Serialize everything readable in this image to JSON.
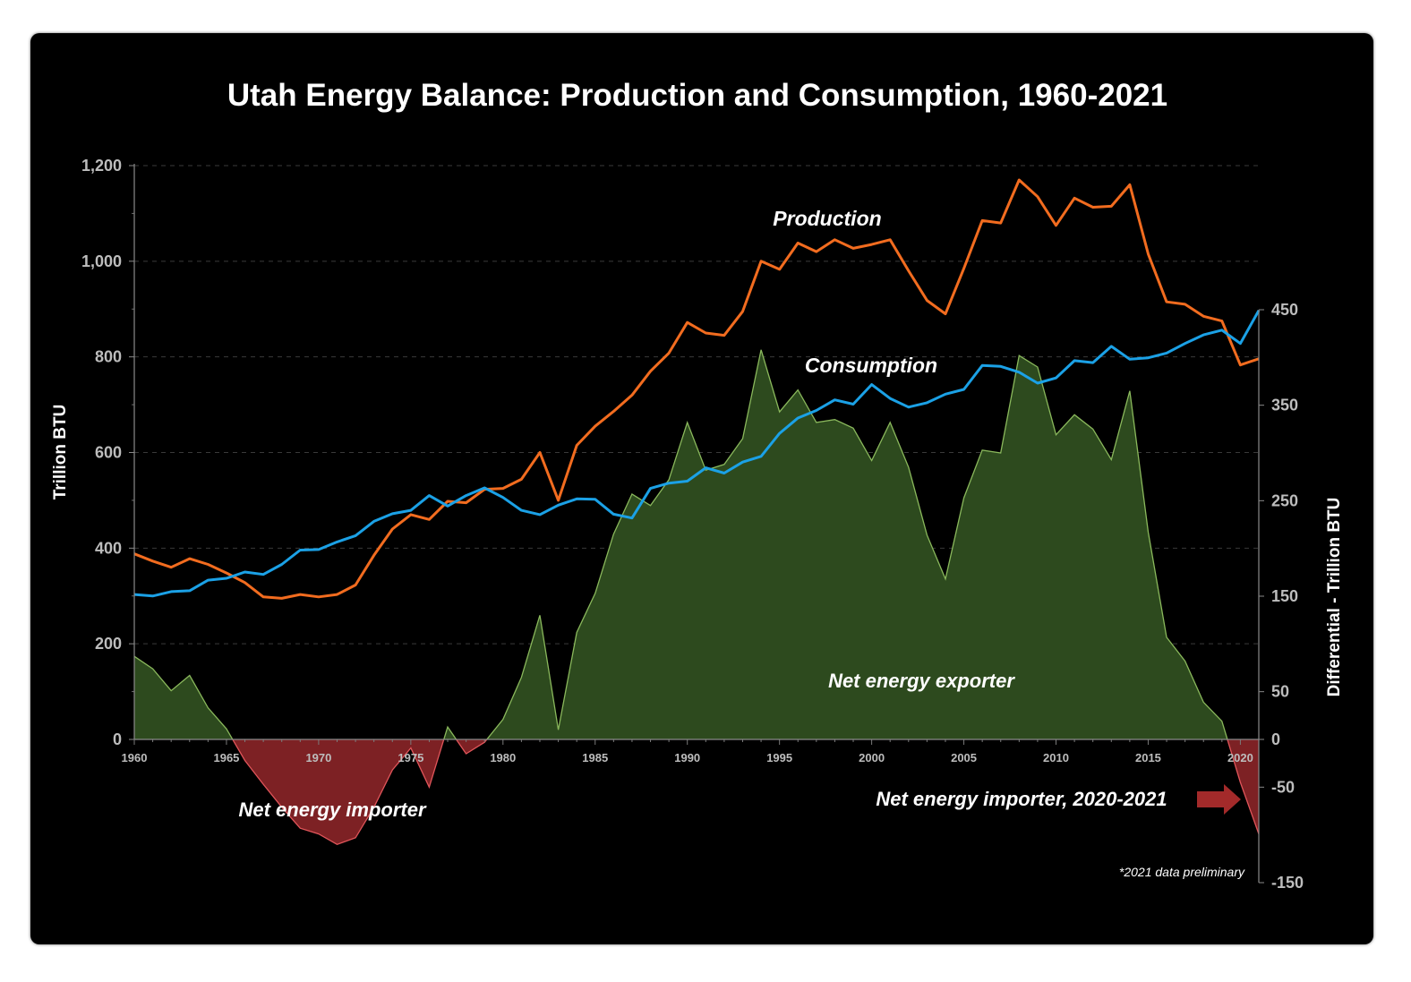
{
  "chart_data": {
    "type": "line",
    "title": "Utah Energy Balance: Production and Consumption, 1960-2021",
    "ylabel": "Trillion BTU",
    "y2label": "Differential - Trillion BTU",
    "ylim": [
      0,
      1200
    ],
    "y2lim": [
      -150,
      450
    ],
    "yticks": [
      "0",
      "200",
      "400",
      "600",
      "800",
      "1,000",
      "1,200"
    ],
    "y2ticks": [
      "-150",
      "-50",
      "0",
      "50",
      "150",
      "250",
      "350",
      "450"
    ],
    "xticks": [
      "1960",
      "1965",
      "1970",
      "1975",
      "1980",
      "1985",
      "1990",
      "1995",
      "2000",
      "2005",
      "2010",
      "2015",
      "2020"
    ],
    "grid": true,
    "x": [
      1960,
      1961,
      1962,
      1963,
      1964,
      1965,
      1966,
      1967,
      1968,
      1969,
      1970,
      1971,
      1972,
      1973,
      1974,
      1975,
      1976,
      1977,
      1978,
      1979,
      1980,
      1981,
      1982,
      1983,
      1984,
      1985,
      1986,
      1987,
      1988,
      1989,
      1990,
      1991,
      1992,
      1993,
      1994,
      1995,
      1996,
      1997,
      1998,
      1999,
      2000,
      2001,
      2002,
      2003,
      2004,
      2005,
      2006,
      2007,
      2008,
      2009,
      2010,
      2011,
      2012,
      2013,
      2014,
      2015,
      2016,
      2017,
      2018,
      2019,
      2020,
      2021
    ],
    "series": [
      {
        "name": "Production",
        "axis": "left",
        "color": "#f26c1f",
        "values": [
          388,
          373,
          360,
          378,
          366,
          348,
          328,
          298,
          295,
          303,
          298,
          303,
          323,
          385,
          440,
          470,
          460,
          498,
          495,
          523,
          525,
          544,
          600,
          500,
          615,
          655,
          686,
          720,
          770,
          808,
          872,
          850,
          845,
          895,
          1000,
          983,
          1038,
          1020,
          1045,
          1027,
          1035,
          1045,
          980,
          918,
          890,
          985,
          1085,
          1080,
          1170,
          1135,
          1075,
          1132,
          1113,
          1115,
          1160,
          1015,
          915,
          910,
          885,
          875,
          783,
          796
        ]
      },
      {
        "name": "Consumption",
        "axis": "left",
        "color": "#1ba1e6",
        "values": [
          303,
          300,
          309,
          311,
          333,
          337,
          350,
          345,
          366,
          396,
          397,
          413,
          426,
          456,
          472,
          479,
          510,
          488,
          510,
          526,
          506,
          479,
          470,
          490,
          503,
          502,
          471,
          463,
          525,
          536,
          540,
          568,
          557,
          580,
          592,
          640,
          672,
          688,
          710,
          701,
          742,
          713,
          695,
          704,
          722,
          732,
          782,
          780,
          768,
          745,
          756,
          792,
          788,
          822,
          795,
          798,
          808,
          828,
          846,
          856,
          828,
          897
        ]
      },
      {
        "name": "Differential",
        "axis": "right",
        "color": "#8ab85c",
        "fill_positive": "#2d4a1e",
        "fill_negative": "#7d2124",
        "values": [
          87,
          74,
          51,
          67,
          33,
          11,
          -22,
          -47,
          -71,
          -93,
          -99,
          -110,
          -103,
          -71,
          -32,
          -9,
          -50,
          13,
          -15,
          -3,
          21,
          65,
          130,
          10,
          112,
          153,
          215,
          257,
          245,
          272,
          332,
          282,
          288,
          315,
          408,
          343,
          366,
          332,
          335,
          326,
          292,
          332,
          285,
          214,
          168,
          253,
          303,
          300,
          402,
          390,
          319,
          340,
          325,
          293,
          365,
          217,
          107,
          82,
          39,
          19,
          -45,
          -99
        ]
      }
    ],
    "annotations": {
      "production": "Production",
      "consumption": "Consumption",
      "exporter": "Net energy exporter",
      "importer": "Net energy importer",
      "importer_recent": "Net energy importer, 2020-2021",
      "note": "*2021 data preliminary"
    },
    "arrow_color": "#a32a2a"
  }
}
